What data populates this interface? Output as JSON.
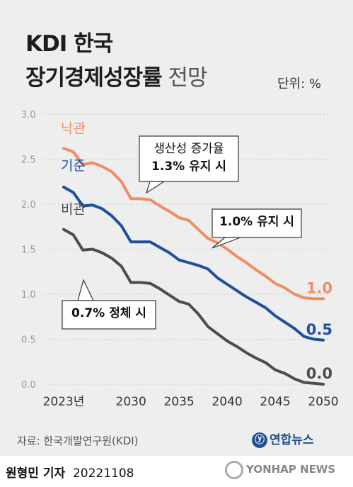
{
  "header": {
    "title_line1": "KDI 한국",
    "title_line2_bold": "장기경제성장률",
    "title_line2_light": "전망",
    "unit": "단위: %"
  },
  "chart_data": {
    "type": "line",
    "title": "KDI 한국 장기경제성장률 전망",
    "ylabel": "단위: %",
    "ylim": [
      0,
      3.0
    ],
    "xlim": [
      2023,
      2050
    ],
    "y_ticks": [
      "0.0",
      "0.5",
      "1.0",
      "1.5",
      "2.0",
      "2.5",
      "3.0"
    ],
    "x_ticks": [
      {
        "value": 2023,
        "label": "2023년"
      },
      {
        "value": 2030,
        "label": "2030"
      },
      {
        "value": 2035,
        "label": "2035"
      },
      {
        "value": 2040,
        "label": "2040"
      },
      {
        "value": 2045,
        "label": "2045"
      },
      {
        "value": 2050,
        "label": "2050"
      }
    ],
    "x": [
      2023,
      2024,
      2025,
      2026,
      2027,
      2028,
      2029,
      2030,
      2031,
      2032,
      2033,
      2034,
      2035,
      2036,
      2037,
      2038,
      2039,
      2040,
      2041,
      2042,
      2043,
      2044,
      2045,
      2046,
      2047,
      2048,
      2049,
      2050
    ],
    "series": [
      {
        "name": "낙관",
        "color": "#ee8e64",
        "end_label": "1.0",
        "values": [
          2.62,
          2.58,
          2.44,
          2.46,
          2.42,
          2.36,
          2.25,
          2.06,
          2.06,
          2.05,
          1.98,
          1.92,
          1.85,
          1.82,
          1.72,
          1.62,
          1.57,
          1.5,
          1.42,
          1.35,
          1.27,
          1.2,
          1.12,
          1.07,
          1.0,
          0.96,
          0.95,
          0.95
        ]
      },
      {
        "name": "기준",
        "color": "#1e4f9c",
        "end_label": "0.5",
        "values": [
          2.19,
          2.13,
          1.98,
          1.99,
          1.95,
          1.87,
          1.76,
          1.58,
          1.58,
          1.58,
          1.52,
          1.46,
          1.38,
          1.35,
          1.32,
          1.28,
          1.18,
          1.11,
          1.04,
          0.97,
          0.91,
          0.85,
          0.76,
          0.69,
          0.62,
          0.53,
          0.5,
          0.49
        ]
      },
      {
        "name": "비관",
        "color": "#4d4d4d",
        "end_label": "0.0",
        "values": [
          1.72,
          1.66,
          1.49,
          1.5,
          1.46,
          1.4,
          1.31,
          1.13,
          1.13,
          1.12,
          1.06,
          0.99,
          0.92,
          0.89,
          0.78,
          0.64,
          0.56,
          0.48,
          0.42,
          0.35,
          0.29,
          0.24,
          0.16,
          0.12,
          0.06,
          0.02,
          0.01,
          0.0
        ]
      }
    ],
    "annotations": [
      {
        "line1": "생산성 증가율",
        "line2": "1.3% 유지 시"
      },
      {
        "line1": "1.0% 유지 시"
      },
      {
        "line1": "0.7% 정체 시"
      }
    ]
  },
  "footer": {
    "source": "자료: 한국개발연구원(KDI)",
    "brand": "연합뉴스",
    "reporter": "원형민 기자",
    "date": "20221108",
    "watermark": "YONHAP NEWS"
  }
}
